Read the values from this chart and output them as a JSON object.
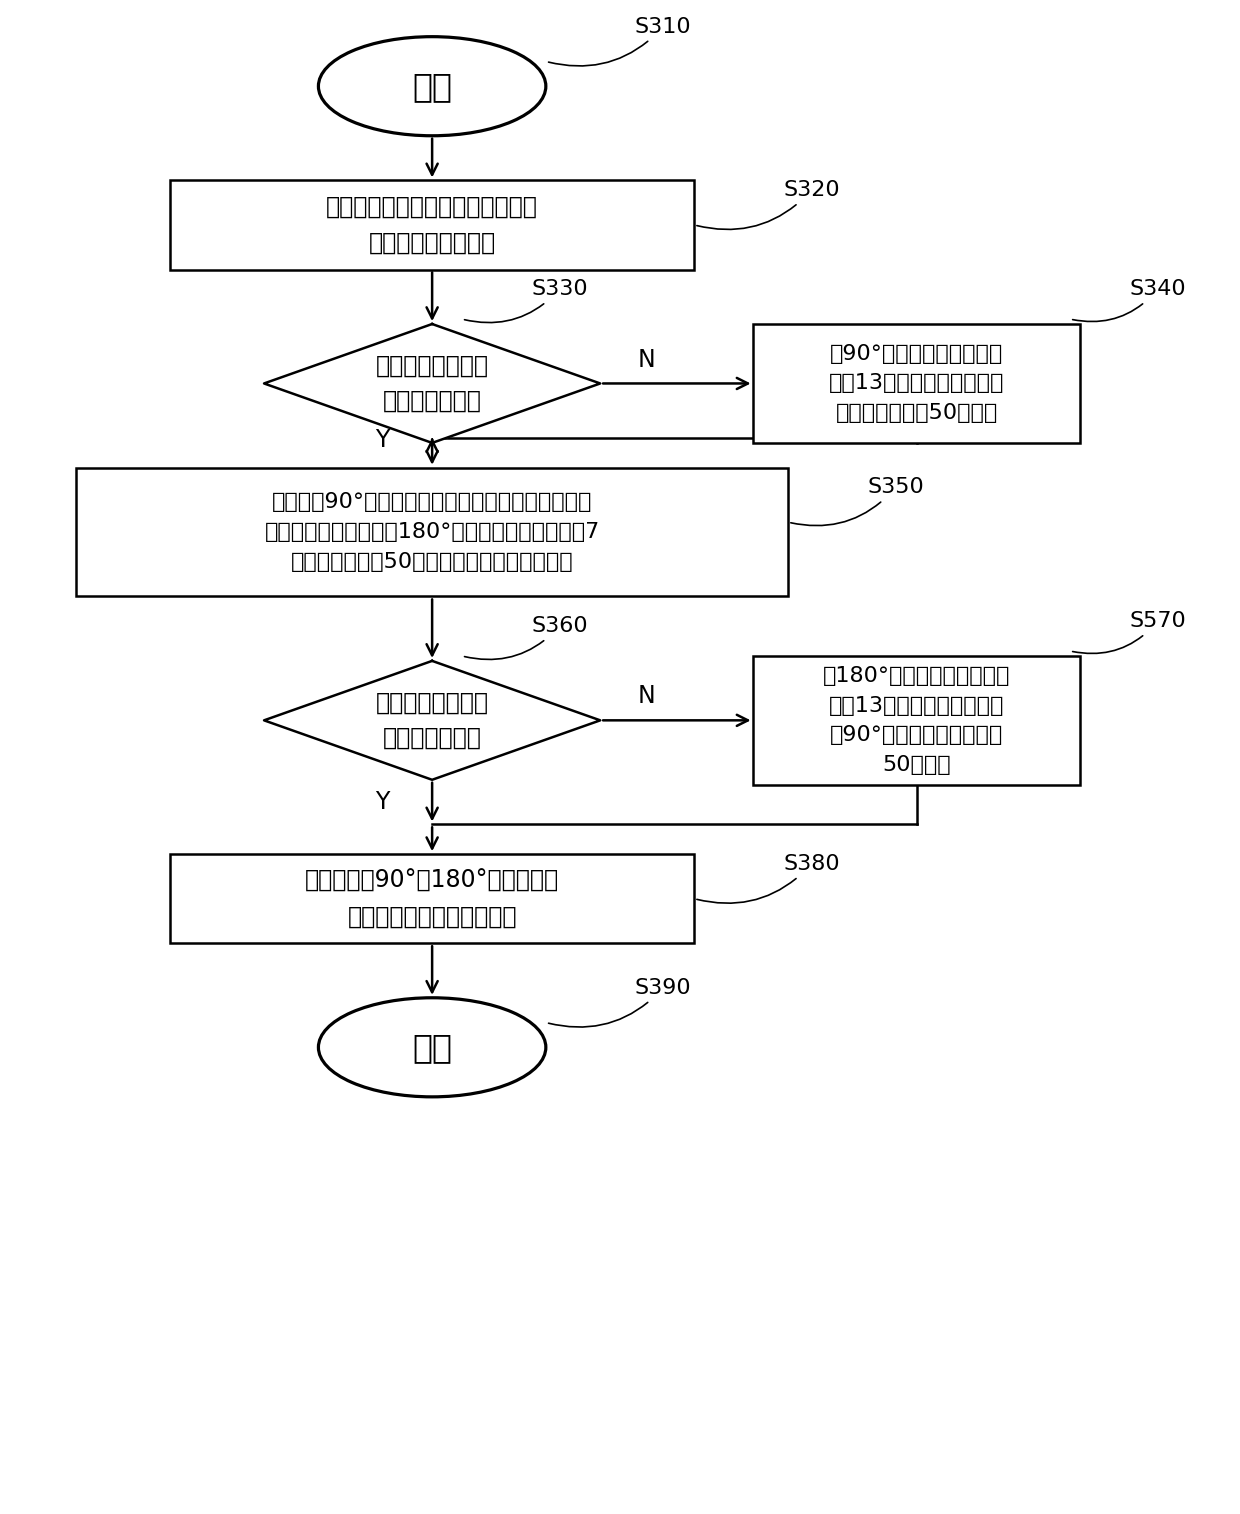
{
  "bg_color": "#ffffff",
  "line_color": "#000000",
  "text_color": "#000000",
  "lw": 1.8,
  "fig_w": 12.4,
  "fig_h": 15.14,
  "dpi": 100,
  "start_label": "开始",
  "end_label": "结束",
  "s310": "S310",
  "s320": "S320",
  "s330": "S330",
  "s340": "S340",
  "s350": "S350",
  "s360": "S360",
  "s570": "S570",
  "s380": "S380",
  "s390": "S390",
  "s320_text": "输入系统参数中基础射频振幅为初\n值作为校准的中心点",
  "s330_text": "判断在迭代范围内\n是否存在极小值",
  "s340_text": "将90°翻转角校准的范围扩\n大到13个振幅点，振幅中心\n仍为基础振幅，50为步长",
  "s350_text": "矫正得到90°翻转角的射频脉冲振幅后，以该射频脉\n冲振幅的两倍作为校准180°翻转角的初值，并计算7\n个射频振幅点，50为步长进行脉冲的校准采集",
  "s360_text": "判断在迭代范围内\n是否存在极小值",
  "s570_text": "将180°翻转角校准的范围扩\n大到13个振幅点，振幅中心\n为90°脉冲校准值的两倍，\n50为步长",
  "s380_text": "输出矫正的90°和180°翻转角对应\n的射频脉冲振幅到系统参数",
  "Y_label": "Y",
  "N_label": "N"
}
